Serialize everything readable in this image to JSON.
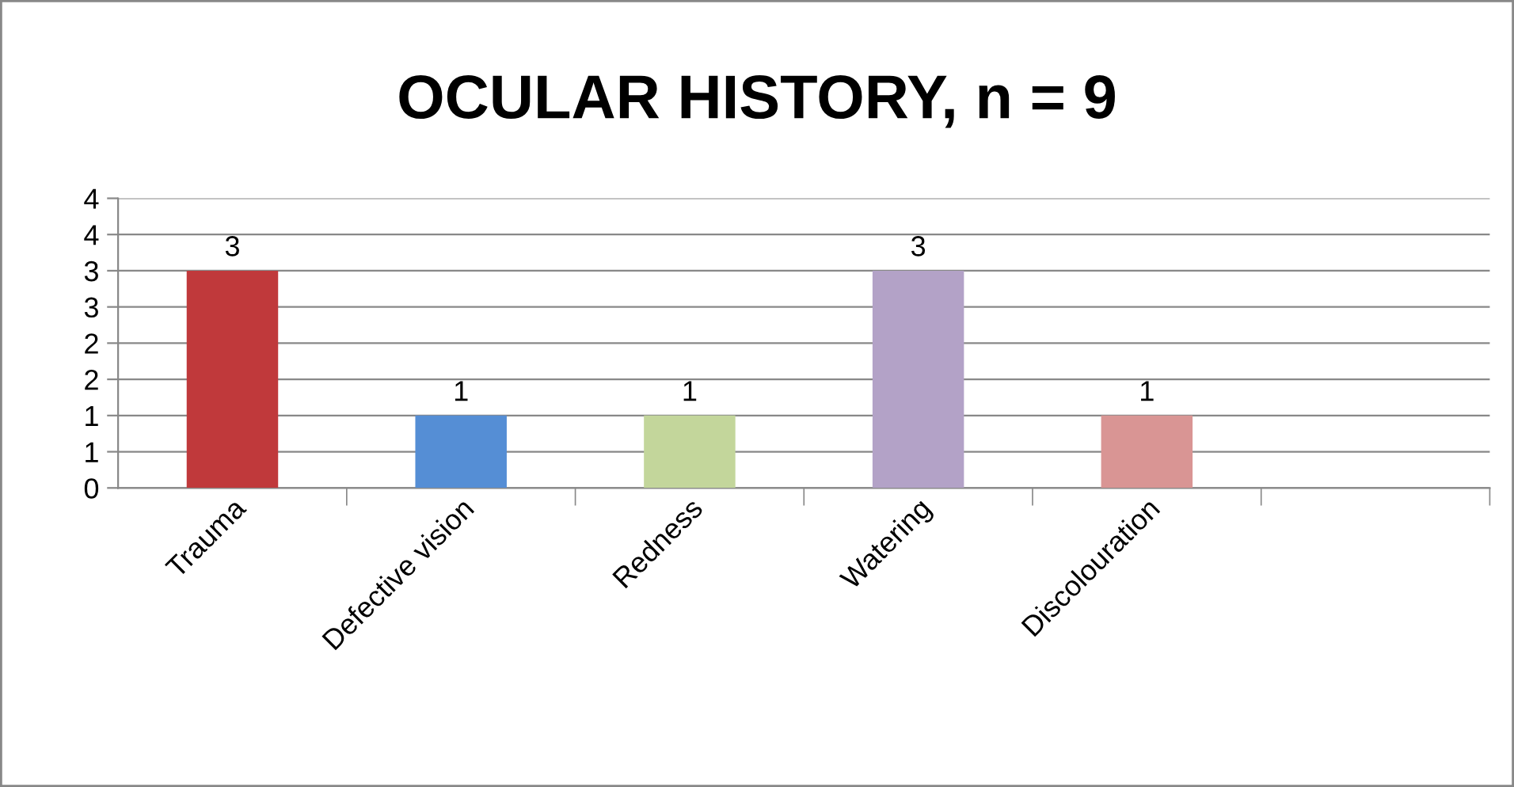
{
  "chart_data": {
    "type": "bar",
    "title": "OCULAR HISTORY, n = 9",
    "categories": [
      "Trauma",
      "Defective vision",
      "Redness",
      "Watering",
      "Discolouration",
      null
    ],
    "values": [
      3,
      1,
      1,
      3,
      1,
      null
    ],
    "colors": [
      "#c0393b",
      "#558ed5",
      "#c3d69b",
      "#b3a2c7",
      "#d99594",
      "#ffffff"
    ],
    "ylim": [
      0,
      4
    ],
    "yticks": [
      0,
      {
        "value": 0.5,
        "label": "1"
      },
      1,
      {
        "value": 1.5,
        "label": "2"
      },
      2,
      {
        "value": 2.5,
        "label": "3"
      },
      3,
      {
        "value": 3.5,
        "label": "4"
      },
      4
    ],
    "grid": "y",
    "data_labels": true
  }
}
